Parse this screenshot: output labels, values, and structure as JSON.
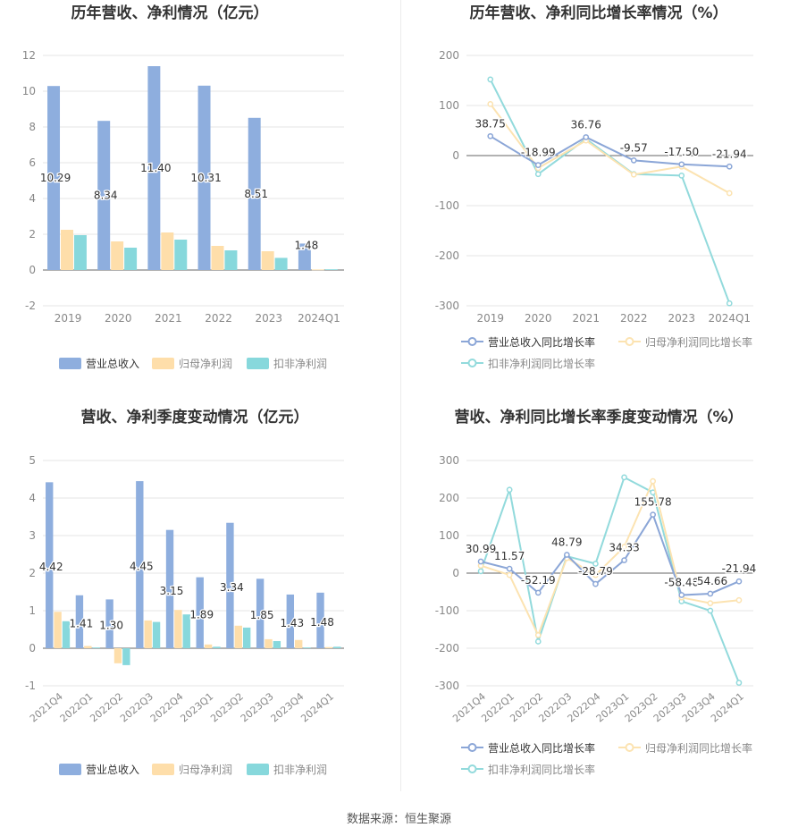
{
  "footer": "数据来源：恒生聚源",
  "colors": {
    "revenue": "#8eaede",
    "net_profit": "#fedeaa",
    "deducted_profit": "#87d8dc",
    "revenue_line": "#8ba6d7",
    "net_profit_line": "#fce3b1",
    "deducted_profit_line": "#92dadc",
    "grid": "#e6e6e6",
    "axis_text": "#888888",
    "title": "#333333"
  },
  "chart_data": [
    {
      "type": "bar",
      "title": "历年营收、净利情况（亿元）",
      "categories": [
        "2019",
        "2020",
        "2021",
        "2022",
        "2023",
        "2024Q1"
      ],
      "ylim": [
        -2,
        12
      ],
      "yticks": [
        -2,
        0,
        2,
        4,
        6,
        8,
        10,
        12
      ],
      "series": [
        {
          "name": "营业总收入",
          "values": [
            10.29,
            8.34,
            11.4,
            10.31,
            8.51,
            1.48
          ],
          "labels": [
            "10.29",
            "8.34",
            "11.40",
            "10.31",
            "8.51",
            "1.48"
          ]
        },
        {
          "name": "归母净利润",
          "values": [
            2.25,
            1.6,
            2.1,
            1.35,
            1.05,
            0.03
          ]
        },
        {
          "name": "扣非净利润",
          "values": [
            1.95,
            1.25,
            1.7,
            1.1,
            0.68,
            0.04
          ]
        }
      ],
      "legend": "bottom"
    },
    {
      "type": "line",
      "title": "历年营收、净利同比增长率情况（%）",
      "categories": [
        "2019",
        "2020",
        "2021",
        "2022",
        "2023",
        "2024Q1"
      ],
      "ylim": [
        -300,
        200
      ],
      "yticks": [
        -300,
        -200,
        -100,
        0,
        100,
        200
      ],
      "series": [
        {
          "name": "营业总收入同比增长率",
          "values": [
            38.75,
            -18.99,
            36.76,
            -9.57,
            -17.5,
            -21.94
          ],
          "labels": [
            "38.75",
            "-18.99",
            "36.76",
            "-9.57",
            "-17.50",
            "-21.94"
          ]
        },
        {
          "name": "归母净利润同比增长率",
          "values": [
            103,
            -25,
            30,
            -38,
            -22,
            -75
          ]
        },
        {
          "name": "扣非净利润同比增长率",
          "values": [
            152,
            -37,
            33,
            -37,
            -40,
            -295
          ]
        }
      ],
      "legend": "bottom"
    },
    {
      "type": "bar",
      "title": "营收、净利季度变动情况（亿元）",
      "categories": [
        "2021Q4",
        "2022Q1",
        "2022Q2",
        "2022Q3",
        "2022Q4",
        "2023Q1",
        "2023Q2",
        "2023Q3",
        "2023Q4",
        "2024Q1"
      ],
      "ylim": [
        -1,
        5
      ],
      "yticks": [
        -1,
        0,
        1,
        2,
        3,
        4,
        5
      ],
      "series": [
        {
          "name": "营业总收入",
          "values": [
            4.42,
            1.41,
            1.3,
            4.45,
            3.15,
            1.89,
            3.34,
            1.85,
            1.43,
            1.48
          ],
          "labels": [
            "4.42",
            "1.41",
            "1.30",
            "4.45",
            "3.15",
            "1.89",
            "3.34",
            "1.85",
            "1.43",
            "1.48"
          ]
        },
        {
          "name": "归母净利润",
          "values": [
            0.97,
            0.06,
            -0.4,
            0.74,
            1.02,
            0.1,
            0.6,
            0.24,
            0.22,
            0.03
          ]
        },
        {
          "name": "扣非净利润",
          "values": [
            0.72,
            0.02,
            -0.45,
            0.7,
            0.9,
            0.04,
            0.55,
            0.19,
            0.02,
            0.04
          ]
        }
      ],
      "legend": "bottom"
    },
    {
      "type": "line",
      "title": "营收、净利同比增长率季度变动情况（%）",
      "categories": [
        "2021Q4",
        "2022Q1",
        "2022Q2",
        "2022Q3",
        "2022Q4",
        "2023Q1",
        "2023Q2",
        "2023Q3",
        "2023Q4",
        "2024Q1"
      ],
      "ylim": [
        -300,
        300
      ],
      "yticks": [
        -300,
        -200,
        -100,
        0,
        100,
        200,
        300
      ],
      "series": [
        {
          "name": "营业总收入同比增长率",
          "values": [
            30.99,
            11.57,
            -52.19,
            48.79,
            -28.79,
            34.33,
            155.78,
            -58.4,
            -54.66,
            -21.94
          ],
          "labels": [
            "30.99",
            "11.57",
            "-52.19",
            "48.79",
            "-28.79",
            "34.33",
            "155.78",
            "-58.40",
            "-54.66",
            "-21.94"
          ]
        },
        {
          "name": "归母净利润同比增长率",
          "values": [
            20,
            -5,
            -165,
            40,
            -5,
            70,
            245,
            -65,
            -80,
            -72
          ]
        },
        {
          "name": "扣非净利润同比增长率",
          "values": [
            5,
            222,
            -182,
            45,
            25,
            255,
            215,
            -75,
            -100,
            -292
          ]
        }
      ],
      "legend": "bottom"
    }
  ]
}
